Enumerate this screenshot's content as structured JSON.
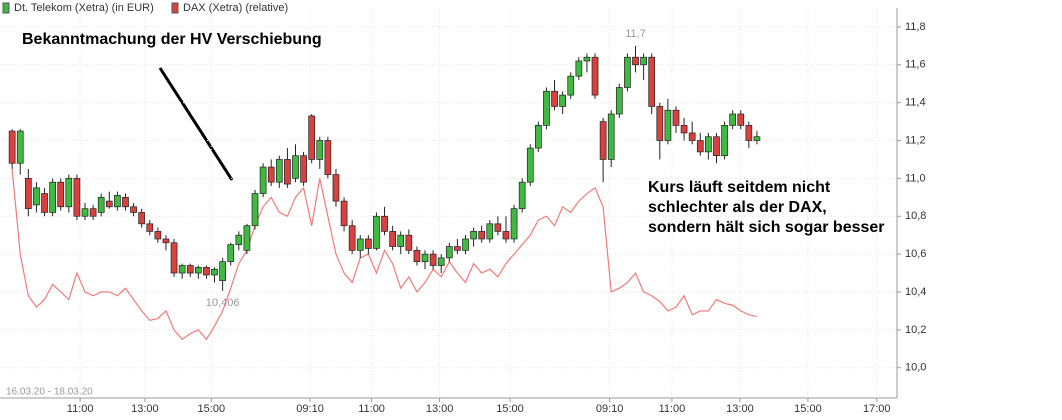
{
  "chart_data": {
    "type": "candlestick",
    "date_range": "16.03.20 - 18.03.20",
    "grid": true,
    "xlim": [
      -1.5,
      109.3
    ],
    "xticks": [
      {
        "value": 8.4,
        "label": "11:00"
      },
      {
        "value": 16.4,
        "label": "13:00"
      },
      {
        "value": 24.6,
        "label": "15:00"
      },
      {
        "value": 36.8,
        "label": "09:10"
      },
      {
        "value": 44.4,
        "label": "11:00"
      },
      {
        "value": 52.8,
        "label": "13:00"
      },
      {
        "value": 61.5,
        "label": "15:00"
      },
      {
        "value": 73.8,
        "label": "09:10"
      },
      {
        "value": 81.5,
        "label": "11:00"
      },
      {
        "value": 89.9,
        "label": "13:00"
      },
      {
        "value": 98.3,
        "label": "15:00"
      },
      {
        "value": 106.8,
        "label": "17:00"
      }
    ],
    "ylim": [
      9.84,
      11.9
    ],
    "yticks": [
      {
        "value": 10.0,
        "label": "10,0"
      },
      {
        "value": 10.2,
        "label": "10,2"
      },
      {
        "value": 10.4,
        "label": "10,4"
      },
      {
        "value": 10.6,
        "label": "10,6"
      },
      {
        "value": 10.8,
        "label": "10,8"
      },
      {
        "value": 11.0,
        "label": "11,0"
      },
      {
        "value": 11.2,
        "label": "11,2"
      },
      {
        "value": 11.4,
        "label": "11,4"
      },
      {
        "value": 11.6,
        "label": "11,6"
      },
      {
        "value": 11.8,
        "label": "11,8"
      }
    ],
    "series": [
      {
        "name": "Dt. Telekom (Xetra) (in EUR)",
        "color": "#3fb93f",
        "down_color": "#d9413f",
        "ohlc": [
          [
            11.25,
            11.26,
            11.05,
            11.08
          ],
          [
            11.08,
            11.26,
            11.02,
            11.25
          ],
          [
            11.0,
            11.05,
            10.8,
            10.84
          ],
          [
            10.86,
            10.98,
            10.82,
            10.95
          ],
          [
            10.92,
            10.95,
            10.8,
            10.82
          ],
          [
            10.82,
            11.0,
            10.8,
            10.98
          ],
          [
            10.98,
            11.0,
            10.83,
            10.85
          ],
          [
            10.85,
            11.02,
            10.82,
            11.0
          ],
          [
            11.0,
            11.02,
            10.78,
            10.8
          ],
          [
            10.8,
            10.87,
            10.78,
            10.84
          ],
          [
            10.84,
            10.86,
            10.78,
            10.8
          ],
          [
            10.82,
            10.92,
            10.8,
            10.9
          ],
          [
            10.88,
            10.93,
            10.84,
            10.85
          ],
          [
            10.85,
            10.93,
            10.83,
            10.91
          ],
          [
            10.9,
            10.92,
            10.83,
            10.85
          ],
          [
            10.85,
            10.87,
            10.8,
            10.82
          ],
          [
            10.82,
            10.84,
            10.74,
            10.76
          ],
          [
            10.76,
            10.78,
            10.7,
            10.72
          ],
          [
            10.72,
            10.74,
            10.66,
            10.68
          ],
          [
            10.68,
            10.7,
            10.62,
            10.66
          ],
          [
            10.66,
            10.68,
            10.48,
            10.5
          ],
          [
            10.5,
            10.55,
            10.47,
            10.54
          ],
          [
            10.54,
            10.55,
            10.48,
            10.5
          ],
          [
            10.5,
            10.54,
            10.47,
            10.53
          ],
          [
            10.53,
            10.54,
            10.47,
            10.49
          ],
          [
            10.49,
            10.53,
            10.45,
            10.52
          ],
          [
            10.46,
            10.58,
            10.406,
            10.56
          ],
          [
            10.56,
            10.66,
            10.54,
            10.65
          ],
          [
            10.65,
            10.72,
            10.62,
            10.7
          ],
          [
            10.62,
            10.76,
            10.6,
            10.75
          ],
          [
            10.75,
            10.94,
            10.73,
            10.92
          ],
          [
            10.92,
            11.08,
            10.9,
            11.06
          ],
          [
            11.06,
            11.1,
            10.96,
            10.98
          ],
          [
            10.98,
            11.12,
            10.95,
            11.1
          ],
          [
            11.1,
            11.16,
            10.95,
            10.97
          ],
          [
            11.0,
            11.18,
            10.98,
            11.12
          ],
          [
            11.12,
            11.14,
            10.96,
            10.98
          ],
          [
            11.33,
            11.34,
            11.08,
            11.1
          ],
          [
            11.1,
            11.22,
            11.05,
            11.2
          ],
          [
            11.2,
            11.22,
            11.0,
            11.02
          ],
          [
            11.02,
            11.05,
            10.85,
            10.88
          ],
          [
            10.88,
            10.9,
            10.72,
            10.75
          ],
          [
            10.75,
            10.78,
            10.6,
            10.62
          ],
          [
            10.62,
            10.7,
            10.58,
            10.68
          ],
          [
            10.68,
            10.7,
            10.6,
            10.63
          ],
          [
            10.63,
            10.82,
            10.62,
            10.8
          ],
          [
            10.8,
            10.85,
            10.7,
            10.72
          ],
          [
            10.72,
            10.75,
            10.62,
            10.64
          ],
          [
            10.64,
            10.72,
            10.6,
            10.7
          ],
          [
            10.7,
            10.73,
            10.6,
            10.62
          ],
          [
            10.62,
            10.64,
            10.54,
            10.56
          ],
          [
            10.56,
            10.62,
            10.52,
            10.6
          ],
          [
            10.6,
            10.62,
            10.52,
            10.54
          ],
          [
            10.54,
            10.6,
            10.5,
            10.58
          ],
          [
            10.58,
            10.66,
            10.56,
            10.64
          ],
          [
            10.64,
            10.68,
            10.6,
            10.62
          ],
          [
            10.62,
            10.7,
            10.6,
            10.68
          ],
          [
            10.68,
            10.74,
            10.64,
            10.72
          ],
          [
            10.72,
            10.75,
            10.66,
            10.68
          ],
          [
            10.68,
            10.78,
            10.66,
            10.76
          ],
          [
            10.76,
            10.8,
            10.7,
            10.72
          ],
          [
            10.72,
            10.8,
            10.66,
            10.68
          ],
          [
            10.68,
            10.86,
            10.66,
            10.84
          ],
          [
            10.84,
            11.0,
            10.82,
            10.98
          ],
          [
            10.98,
            11.18,
            10.96,
            11.16
          ],
          [
            11.16,
            11.3,
            11.14,
            11.28
          ],
          [
            11.28,
            11.48,
            11.26,
            11.46
          ],
          [
            11.46,
            11.52,
            11.36,
            11.38
          ],
          [
            11.38,
            11.46,
            11.34,
            11.44
          ],
          [
            11.44,
            11.56,
            11.42,
            11.54
          ],
          [
            11.54,
            11.64,
            11.52,
            11.62
          ],
          [
            11.62,
            11.66,
            11.56,
            11.64
          ],
          [
            11.64,
            11.66,
            11.42,
            11.44
          ],
          [
            11.3,
            11.32,
            10.98,
            11.1
          ],
          [
            11.1,
            11.36,
            11.06,
            11.34
          ],
          [
            11.34,
            11.5,
            11.32,
            11.48
          ],
          [
            11.48,
            11.66,
            11.46,
            11.64
          ],
          [
            11.64,
            11.7,
            11.56,
            11.6
          ],
          [
            11.6,
            11.66,
            11.52,
            11.64
          ],
          [
            11.64,
            11.66,
            11.34,
            11.38
          ],
          [
            11.38,
            11.4,
            11.1,
            11.2
          ],
          [
            11.2,
            11.42,
            11.18,
            11.36
          ],
          [
            11.36,
            11.38,
            11.24,
            11.28
          ],
          [
            11.28,
            11.32,
            11.2,
            11.24
          ],
          [
            11.24,
            11.3,
            11.18,
            11.2
          ],
          [
            11.2,
            11.24,
            11.12,
            11.14
          ],
          [
            11.14,
            11.24,
            11.1,
            11.22
          ],
          [
            11.22,
            11.24,
            11.08,
            11.12
          ],
          [
            11.12,
            11.3,
            11.1,
            11.28
          ],
          [
            11.28,
            11.36,
            11.26,
            11.34
          ],
          [
            11.34,
            11.36,
            11.26,
            11.28
          ],
          [
            11.28,
            11.3,
            11.16,
            11.2
          ],
          [
            11.2,
            11.25,
            11.18,
            11.22
          ]
        ]
      },
      {
        "name": "DAX (Xetra) (relative)",
        "color": "#f07a7a",
        "values": [
          11.05,
          10.6,
          10.38,
          10.32,
          10.36,
          10.44,
          10.4,
          10.36,
          10.5,
          10.4,
          10.38,
          10.4,
          10.4,
          10.38,
          10.42,
          10.36,
          10.3,
          10.25,
          10.26,
          10.3,
          10.2,
          10.15,
          10.18,
          10.2,
          10.15,
          10.22,
          10.3,
          10.42,
          10.55,
          10.62,
          10.75,
          10.85,
          10.9,
          10.82,
          10.8,
          10.9,
          10.95,
          10.75,
          11.0,
          10.8,
          10.6,
          10.5,
          10.45,
          10.58,
          10.6,
          10.5,
          10.62,
          10.55,
          10.42,
          10.48,
          10.4,
          10.45,
          10.52,
          10.48,
          10.56,
          10.5,
          10.45,
          10.55,
          10.5,
          10.52,
          10.48,
          10.55,
          10.6,
          10.65,
          10.7,
          10.78,
          10.8,
          10.75,
          10.85,
          10.82,
          10.88,
          10.92,
          10.95,
          10.85,
          10.4,
          10.42,
          10.45,
          10.5,
          10.4,
          10.38,
          10.35,
          10.3,
          10.32,
          10.38,
          10.28,
          10.3,
          10.3,
          10.36,
          10.34,
          10.33,
          10.3,
          10.28,
          10.27
        ]
      }
    ],
    "value_annotations": [
      {
        "x": 77,
        "value": 11.7,
        "label": "11,7"
      },
      {
        "x": 26,
        "value": 10.406,
        "label": "10,406"
      }
    ],
    "annotations": [
      "Bekanntmachung der HV Verschiebung",
      "Kurs läuft seitdem nicht",
      "schlechter als der DAX,",
      "sondern hält sich sogar besser"
    ]
  }
}
